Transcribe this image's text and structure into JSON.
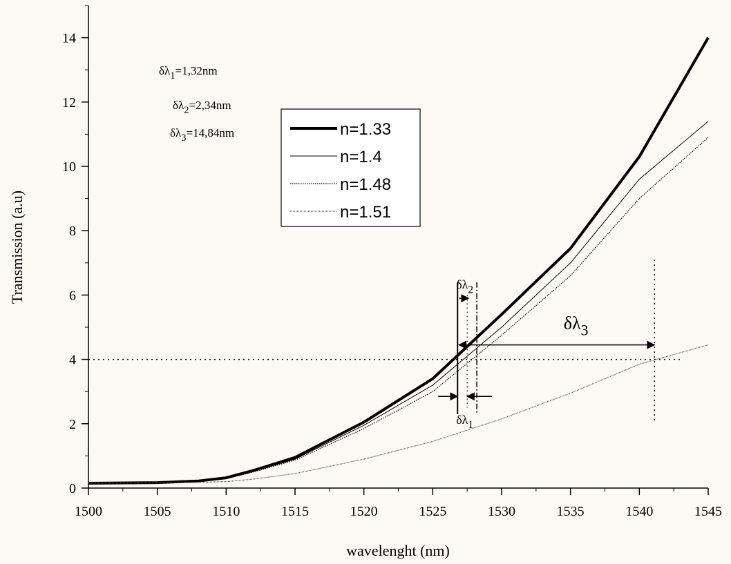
{
  "chart_data": {
    "type": "line",
    "x_label": "wavelenght (nm)",
    "y_label": "Transmission (a.u)",
    "x": [
      1500,
      1505,
      1508,
      1510,
      1512,
      1515,
      1520,
      1525,
      1530,
      1535,
      1540,
      1545
    ],
    "series": [
      {
        "name": "n=1.33",
        "color": "#000000",
        "values": [
          0.15,
          0.17,
          0.22,
          0.32,
          0.55,
          0.95,
          2.05,
          3.4,
          5.4,
          7.45,
          10.3,
          14.0
        ]
      },
      {
        "name": "n=1.4",
        "color": "#000000",
        "values": [
          0.15,
          0.17,
          0.21,
          0.3,
          0.52,
          0.9,
          1.95,
          3.2,
          5.0,
          7.0,
          9.6,
          11.4
        ]
      },
      {
        "name": "n=1.48",
        "color": "#000000",
        "values": [
          0.15,
          0.17,
          0.21,
          0.29,
          0.5,
          0.87,
          1.85,
          3.0,
          4.75,
          6.6,
          9.0,
          10.9
        ]
      },
      {
        "name": "n=1.51",
        "color": "#444444",
        "values": [
          0.15,
          0.16,
          0.18,
          0.2,
          0.28,
          0.45,
          0.9,
          1.45,
          2.15,
          2.95,
          3.85,
          4.45
        ]
      }
    ],
    "xlim": [
      1500,
      1545
    ],
    "xticks": [
      1500,
      1505,
      1510,
      1515,
      1520,
      1525,
      1530,
      1535,
      1540,
      1545
    ],
    "ylim": [
      0,
      15
    ],
    "yticks": [
      0,
      2,
      4,
      6,
      8,
      10,
      12,
      14
    ],
    "reference": {
      "y": 4,
      "x": [
        1526.8,
        1528.2,
        1541.1
      ]
    },
    "annotations": [
      {
        "base": "δλ",
        "sub": "1",
        "text": "=1,32nm"
      },
      {
        "base": "δλ",
        "sub": "2",
        "text": "=2,34nm"
      },
      {
        "base": "δλ",
        "sub": "3",
        "text": "=14,84nm"
      }
    ],
    "arrow_labels": [
      {
        "base": "δλ",
        "sub": "2"
      },
      {
        "base": "δλ",
        "sub": "3"
      },
      {
        "base": "δλ",
        "sub": "1"
      }
    ]
  }
}
